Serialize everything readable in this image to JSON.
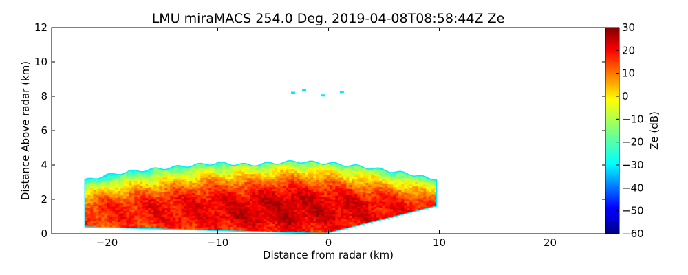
{
  "chart_data": {
    "type": "heatmap",
    "title": "LMU miraMACS 254.0 Deg. 2019-04-08T08:58:44Z  Ze",
    "xlabel": "Distance from radar (km)",
    "ylabel": "Distance Above radar  (km)",
    "xlim": [
      -25,
      25
    ],
    "ylim": [
      0,
      12
    ],
    "xticks": [
      -20,
      -10,
      0,
      10,
      20
    ],
    "xtick_labels": [
      "−20",
      "−10",
      "0",
      "10",
      "20"
    ],
    "yticks": [
      0,
      2,
      4,
      6,
      8,
      10,
      12
    ],
    "ytick_labels": [
      "0",
      "2",
      "4",
      "6",
      "8",
      "10",
      "12"
    ],
    "grid": false,
    "colorbar": {
      "label": "Ze (dB)",
      "range": [
        -60,
        30
      ],
      "colormap": "jet",
      "ticks": [
        30,
        20,
        10,
        0,
        -10,
        -20,
        -30,
        -40,
        -50,
        -60
      ],
      "tick_labels": [
        "30",
        "20",
        "10",
        "0",
        "−10",
        "−20",
        "−30",
        "−40",
        "−50",
        "−60"
      ]
    },
    "echo_region": {
      "x_range": [
        -22,
        9.8
      ],
      "top_height": [
        {
          "x": -22,
          "z": 3.1
        },
        {
          "x": -20,
          "z": 3.4
        },
        {
          "x": -18,
          "z": 3.6
        },
        {
          "x": -15,
          "z": 3.8
        },
        {
          "x": -12,
          "z": 4.0
        },
        {
          "x": -10,
          "z": 4.1
        },
        {
          "x": -7,
          "z": 4.0
        },
        {
          "x": -5,
          "z": 4.1
        },
        {
          "x": -3,
          "z": 4.2
        },
        {
          "x": 0,
          "z": 4.1
        },
        {
          "x": 3,
          "z": 3.9
        },
        {
          "x": 6,
          "z": 3.6
        },
        {
          "x": 8,
          "z": 3.4
        },
        {
          "x": 9,
          "z": 3.2
        }
      ],
      "core_reflectivity_dB": 20,
      "edge_reflectivity_dB": -25
    },
    "isolated_echoes": [
      {
        "x": -3.2,
        "z": 8.2
      },
      {
        "x": -0.5,
        "z": 8.05
      },
      {
        "x": 1.2,
        "z": 8.25
      },
      {
        "x": -2.2,
        "z": 8.35
      }
    ]
  }
}
